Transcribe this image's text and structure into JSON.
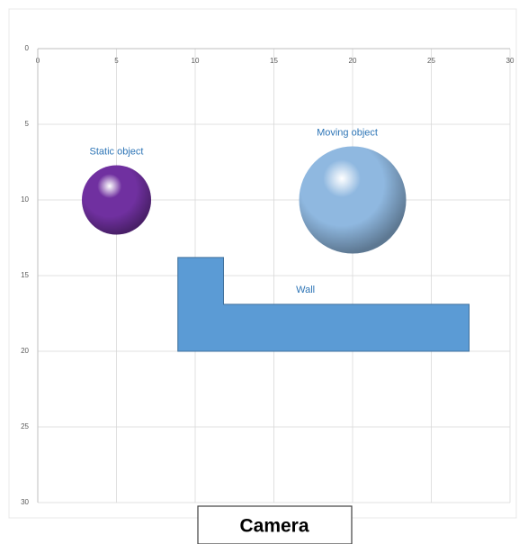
{
  "chart_data": {
    "type": "bubble",
    "xlim": [
      0,
      30
    ],
    "xticks": [
      0,
      5,
      10,
      15,
      20,
      25,
      30
    ],
    "ylim": [
      0,
      30
    ],
    "yticks": [
      0,
      5,
      10,
      15,
      20,
      25,
      30
    ],
    "y_reversed": true,
    "grid": true,
    "series": [
      {
        "name": "Static object",
        "color": "#7030a0",
        "x": [
          5
        ],
        "values": [
          10
        ],
        "sizes": [
          2.2
        ]
      },
      {
        "name": "Moving object",
        "color": "#8fb8e0",
        "x": [
          20
        ],
        "values": [
          10
        ],
        "sizes": [
          3.4
        ]
      },
      {
        "name": "Wall",
        "type": "polygon",
        "color": "#5b9bd5",
        "x": [
          8.9,
          11.8,
          11.8,
          27.4,
          27.4,
          8.9
        ],
        "values": [
          13.8,
          13.8,
          16.9,
          16.9,
          20,
          20
        ]
      }
    ],
    "annotations": [
      "Camera"
    ]
  }
}
